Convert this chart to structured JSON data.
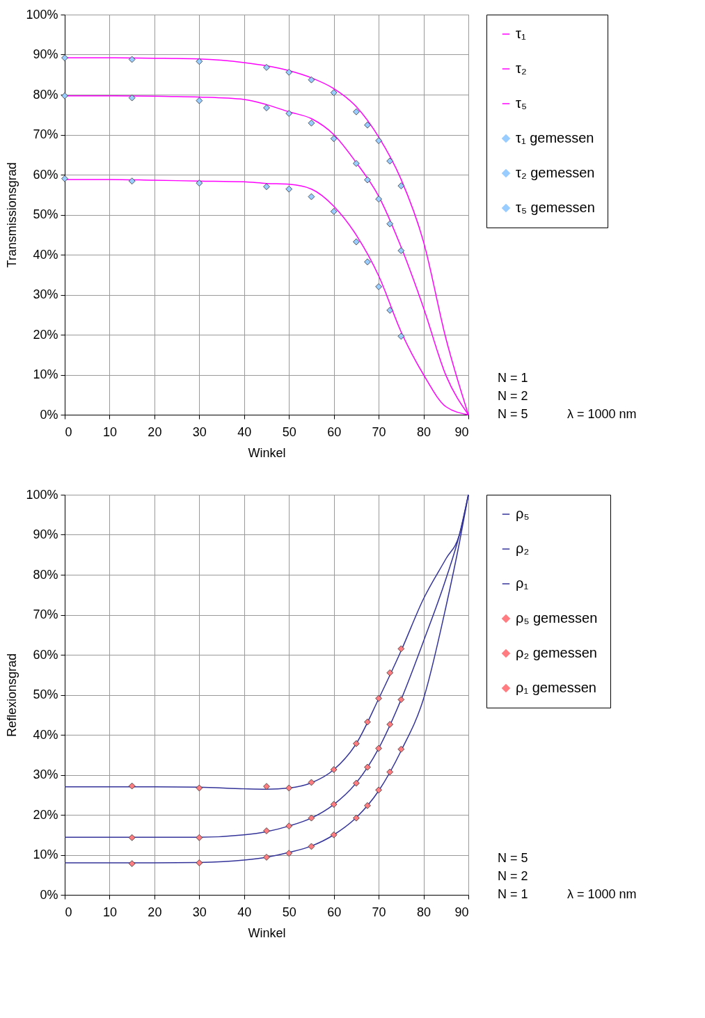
{
  "chart_data": [
    {
      "type": "line",
      "xlabel": "Winkel",
      "ylabel": "Transmissionsgrad",
      "xlim": [
        0,
        90
      ],
      "xticks": [
        0,
        10,
        20,
        30,
        40,
        50,
        60,
        70,
        80,
        90
      ],
      "ylim": [
        0,
        100
      ],
      "yticks": [
        {
          "value": 0,
          "label": "0%"
        },
        {
          "value": 10,
          "label": "10%"
        },
        {
          "value": 20,
          "label": "20%"
        },
        {
          "value": 30,
          "label": "30%"
        },
        {
          "value": 40,
          "label": "40%"
        },
        {
          "value": 50,
          "label": "50%"
        },
        {
          "value": 60,
          "label": "60%"
        },
        {
          "value": 70,
          "label": "70%"
        },
        {
          "value": 80,
          "label": "80%"
        },
        {
          "value": 90,
          "label": "90%"
        },
        {
          "value": 100,
          "label": "100%"
        }
      ],
      "grid": true,
      "legend": "right",
      "series": [
        {
          "name": "τ₁",
          "type": "line",
          "color": "#ff00ff",
          "x": [
            0,
            10,
            20,
            30,
            40,
            45,
            50,
            55,
            60,
            65,
            70,
            75,
            80,
            85,
            90
          ],
          "values": [
            89.2,
            89.2,
            89.1,
            88.9,
            88.0,
            87.2,
            86.0,
            84.2,
            81.5,
            77.0,
            69.4,
            58.8,
            43.2,
            19.0,
            0
          ]
        },
        {
          "name": "τ₂",
          "type": "line",
          "color": "#ff00ff",
          "x": [
            0,
            10,
            20,
            30,
            40,
            45,
            50,
            55,
            60,
            65,
            70,
            75,
            80,
            85,
            90
          ],
          "values": [
            79.7,
            79.7,
            79.6,
            79.4,
            78.8,
            77.5,
            75.7,
            74.0,
            70.0,
            63.0,
            54.6,
            41.9,
            26.7,
            9.8,
            0
          ]
        },
        {
          "name": "τ₅",
          "type": "line",
          "color": "#ff00ff",
          "x": [
            0,
            10,
            20,
            30,
            40,
            45,
            50,
            55,
            60,
            65,
            70,
            75,
            80,
            85,
            90
          ],
          "values": [
            58.8,
            58.8,
            58.6,
            58.4,
            58.2,
            57.8,
            57.6,
            56.4,
            52.1,
            44.9,
            34.7,
            20.7,
            10.0,
            2.0,
            0
          ]
        },
        {
          "name": "τ₁ gemessen",
          "type": "scatter",
          "marker": "diamond",
          "color": "#99ccff",
          "x": [
            0,
            15,
            30,
            45,
            50,
            55,
            60,
            65,
            67.5,
            70,
            72.5,
            75
          ],
          "values": [
            89.2,
            88.8,
            88.3,
            86.8,
            85.6,
            83.7,
            80.5,
            75.7,
            72.4,
            68.5,
            63.4,
            57.2
          ]
        },
        {
          "name": "τ₂ gemessen",
          "type": "scatter",
          "marker": "diamond",
          "color": "#99ccff",
          "x": [
            0,
            15,
            30,
            45,
            50,
            55,
            60,
            65,
            67.5,
            70,
            72.5,
            75
          ],
          "values": [
            79.7,
            79.2,
            78.5,
            76.7,
            75.3,
            72.9,
            69.0,
            62.8,
            58.7,
            53.9,
            47.7,
            41.0
          ]
        },
        {
          "name": "τ₅ gemessen",
          "type": "scatter",
          "marker": "diamond",
          "color": "#99ccff",
          "x": [
            0,
            15,
            30,
            45,
            50,
            55,
            60,
            65,
            67.5,
            70,
            72.5,
            75
          ],
          "values": [
            59.0,
            58.4,
            57.9,
            57.0,
            56.4,
            54.5,
            50.8,
            43.2,
            38.2,
            32.0,
            26.1,
            19.6
          ]
        }
      ],
      "annotations": [
        "N = 1",
        "N = 2",
        "N = 5",
        "λ = 1000 nm"
      ]
    },
    {
      "type": "line",
      "xlabel": "Winkel",
      "ylabel": "Reflexionsgrad",
      "xlim": [
        0,
        90
      ],
      "xticks": [
        0,
        10,
        20,
        30,
        40,
        50,
        60,
        70,
        80,
        90
      ],
      "ylim": [
        0,
        100
      ],
      "yticks": [
        {
          "value": 0,
          "label": "0%"
        },
        {
          "value": 10,
          "label": "10%"
        },
        {
          "value": 20,
          "label": "20%"
        },
        {
          "value": 30,
          "label": "30%"
        },
        {
          "value": 40,
          "label": "40%"
        },
        {
          "value": 50,
          "label": "50%"
        },
        {
          "value": 60,
          "label": "60%"
        },
        {
          "value": 70,
          "label": "70%"
        },
        {
          "value": 80,
          "label": "80%"
        },
        {
          "value": 90,
          "label": "90%"
        },
        {
          "value": 100,
          "label": "100%"
        }
      ],
      "grid": true,
      "legend": "right",
      "series": [
        {
          "name": "ρ₅",
          "type": "line",
          "color": "#333399",
          "x": [
            0,
            10,
            20,
            30,
            40,
            45,
            50,
            55,
            60,
            65,
            70,
            75,
            80,
            85,
            88,
            90
          ],
          "values": [
            27.0,
            27.0,
            27.0,
            26.9,
            26.5,
            26.4,
            26.7,
            28.0,
            31.3,
            37.8,
            49.0,
            61.0,
            74.0,
            84.0,
            90.0,
            100
          ]
        },
        {
          "name": "ρ₂",
          "type": "line",
          "color": "#333399",
          "x": [
            0,
            10,
            20,
            30,
            40,
            45,
            50,
            55,
            60,
            65,
            70,
            75,
            80,
            85,
            88,
            90
          ],
          "values": [
            14.4,
            14.4,
            14.4,
            14.4,
            15.0,
            15.8,
            17.2,
            19.2,
            22.6,
            28.0,
            36.6,
            48.8,
            63.4,
            79.0,
            90.0,
            100
          ]
        },
        {
          "name": "ρ₁",
          "type": "line",
          "color": "#333399",
          "x": [
            0,
            10,
            20,
            30,
            40,
            45,
            50,
            55,
            60,
            65,
            70,
            75,
            80,
            85,
            88,
            90
          ],
          "values": [
            8.0,
            8.0,
            8.0,
            8.1,
            8.7,
            9.4,
            10.6,
            12.2,
            15.0,
            19.3,
            26.0,
            36.0,
            49.0,
            72.0,
            88.0,
            100
          ]
        },
        {
          "name": "ρ₅ gemessen",
          "type": "scatter",
          "marker": "diamond",
          "color": "#ff7c80",
          "x": [
            15,
            30,
            45,
            50,
            55,
            60,
            65,
            67.5,
            70,
            72.5,
            75
          ],
          "values": [
            27.2,
            26.7,
            27.1,
            26.7,
            28.1,
            31.3,
            37.8,
            43.2,
            49.1,
            55.5,
            61.5
          ]
        },
        {
          "name": "ρ₂ gemessen",
          "type": "scatter",
          "marker": "diamond",
          "color": "#ff7c80",
          "x": [
            15,
            30,
            45,
            50,
            55,
            60,
            65,
            67.5,
            70,
            72.5,
            75
          ],
          "values": [
            14.3,
            14.3,
            16.0,
            17.2,
            19.2,
            22.6,
            27.9,
            31.9,
            36.6,
            42.6,
            48.8
          ]
        },
        {
          "name": "ρ₁ gemessen",
          "type": "scatter",
          "marker": "diamond",
          "color": "#ff7c80",
          "x": [
            15,
            30,
            45,
            50,
            55,
            60,
            65,
            67.5,
            70,
            72.5,
            75
          ],
          "values": [
            7.8,
            8.0,
            9.4,
            10.4,
            12.1,
            15.0,
            19.2,
            22.3,
            26.2,
            30.7,
            36.4
          ]
        }
      ],
      "annotations": [
        "N = 5",
        "N = 2",
        "N = 1",
        "λ = 1000 nm"
      ]
    }
  ]
}
